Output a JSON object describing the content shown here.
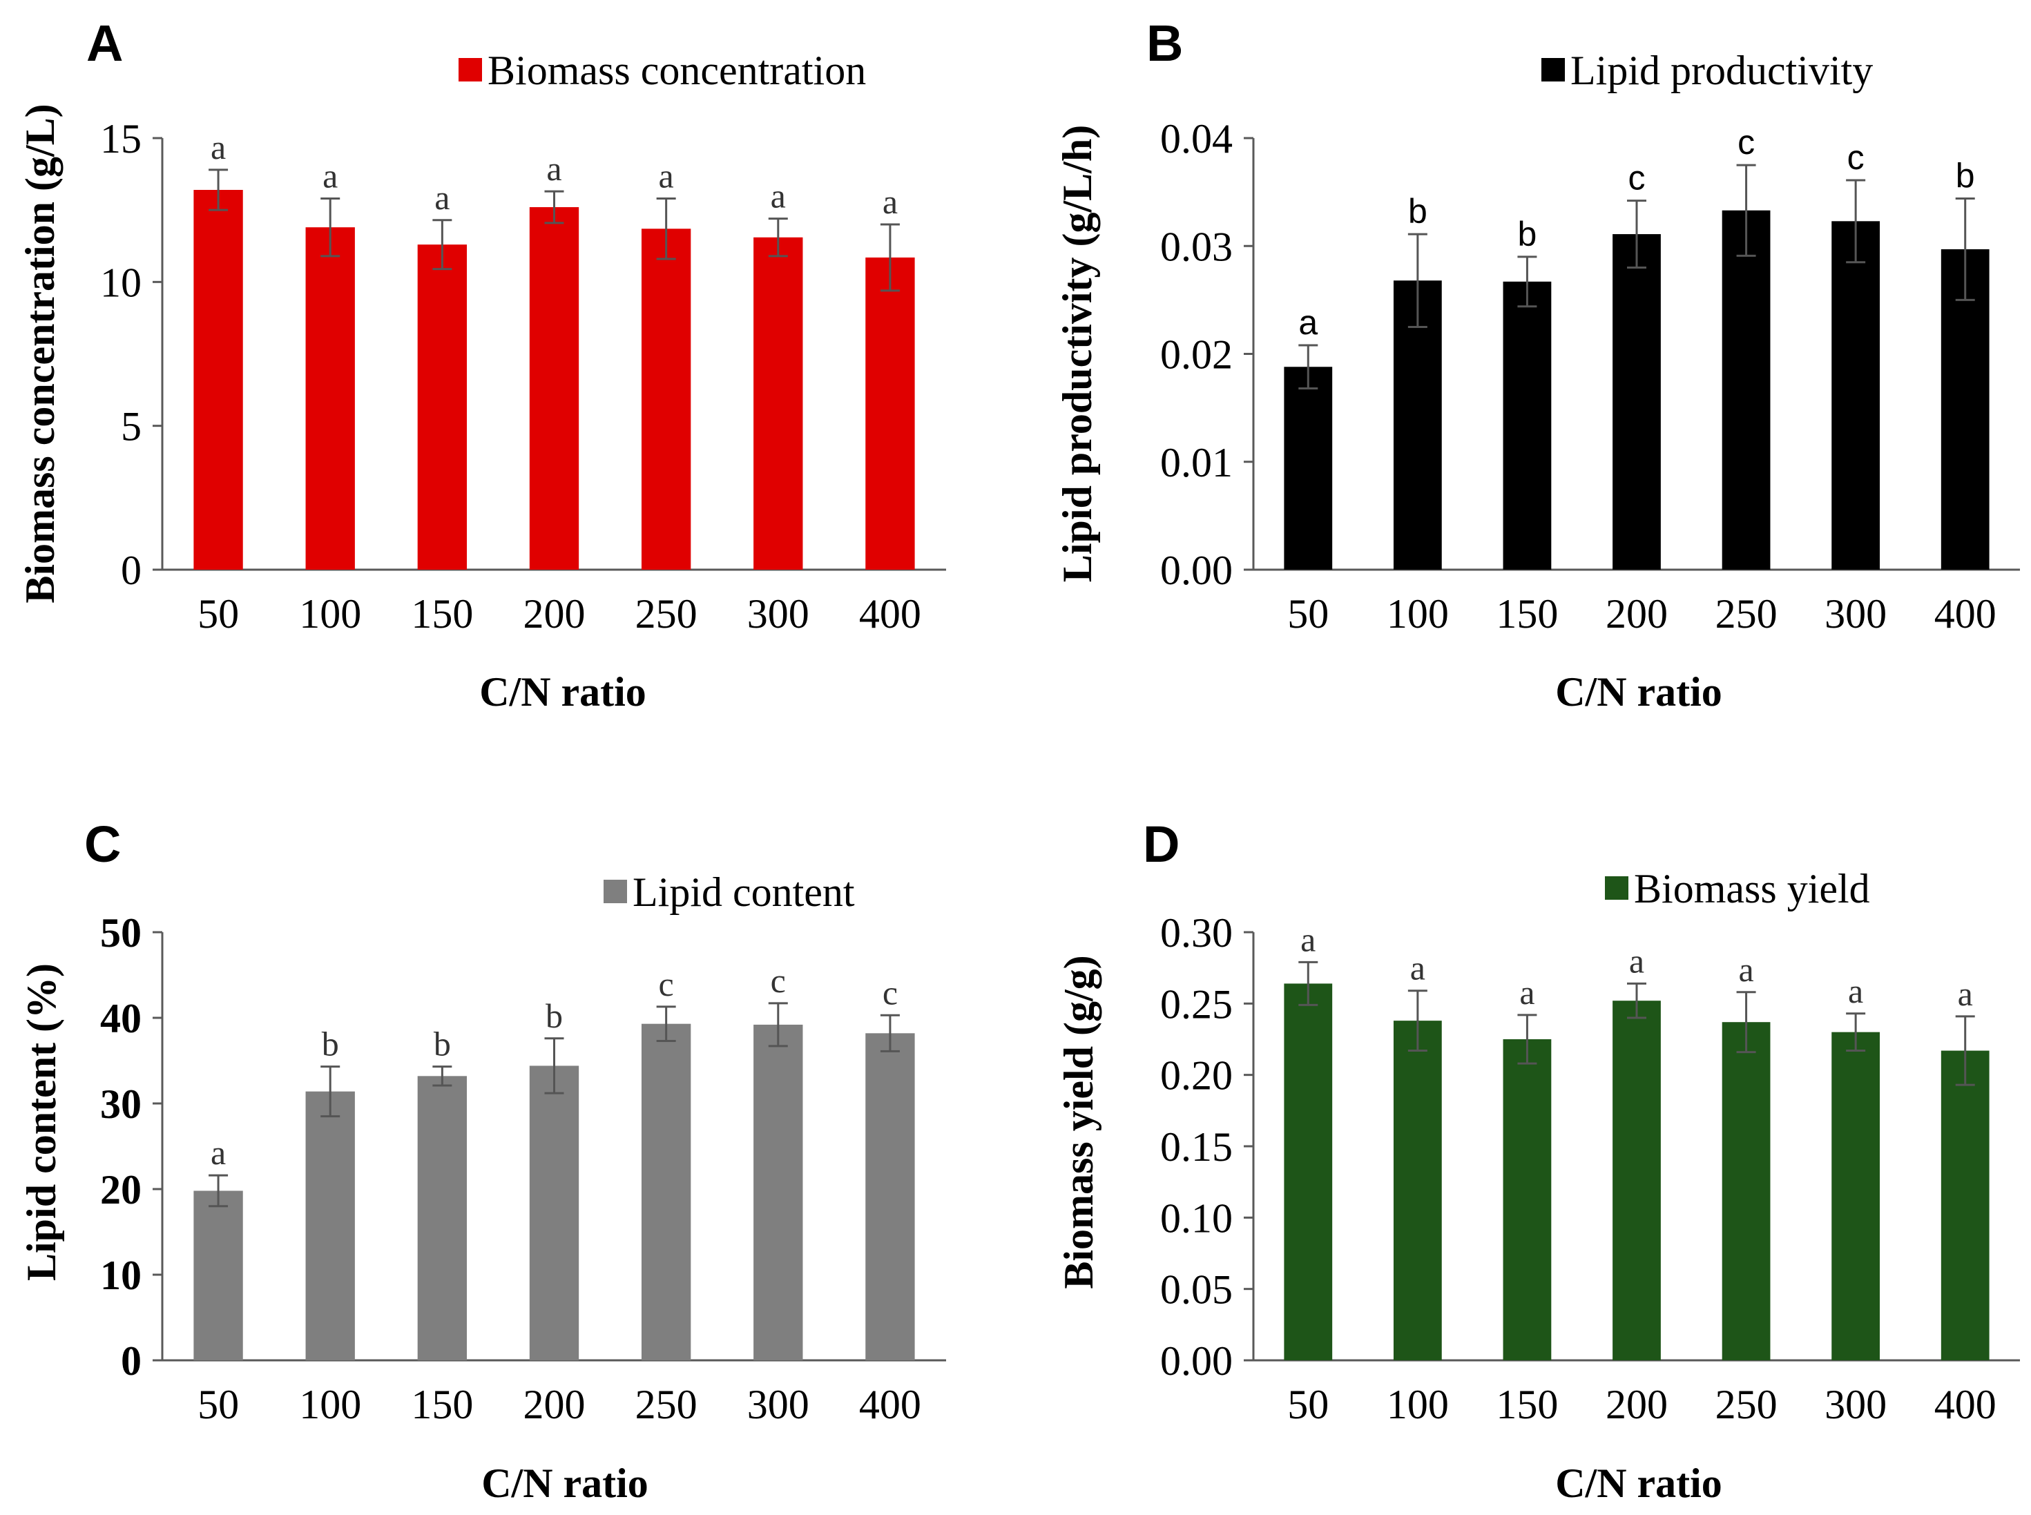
{
  "figure": {
    "x_categories": [
      "50",
      "100",
      "150",
      "200",
      "250",
      "300",
      "400"
    ]
  },
  "chart_data": [
    {
      "panel": "A",
      "type": "bar",
      "legend": "Biomass concentration",
      "xlabel": "C/N ratio",
      "ylabel": "Biomass concentration (g/L)",
      "categories": [
        "50",
        "100",
        "150",
        "200",
        "250",
        "300",
        "400"
      ],
      "values": [
        13.2,
        11.9,
        11.3,
        12.6,
        11.85,
        11.55,
        10.85
      ],
      "errors": [
        0.7,
        1.0,
        0.85,
        0.55,
        1.05,
        0.65,
        1.15
      ],
      "significance": [
        "a",
        "a",
        "a",
        "a",
        "a",
        "a",
        "a"
      ],
      "ylim": [
        0,
        15
      ],
      "yticks": [
        "0",
        "5",
        "10",
        "15"
      ],
      "color": "#e00000",
      "tick_bold": false,
      "sig_font": "serif"
    },
    {
      "panel": "B",
      "type": "bar",
      "legend": "Lipid productivity",
      "xlabel": "C/N ratio",
      "ylabel": "Lipid productivity (g/L/h)",
      "categories": [
        "50",
        "100",
        "150",
        "200",
        "250",
        "300",
        "400"
      ],
      "values": [
        0.0188,
        0.0268,
        0.0267,
        0.0311,
        0.0333,
        0.0323,
        0.0297
      ],
      "errors": [
        0.002,
        0.0043,
        0.0023,
        0.0031,
        0.0042,
        0.0038,
        0.0047
      ],
      "significance": [
        "a",
        "b",
        "b",
        "c",
        "c",
        "c",
        "b"
      ],
      "ylim": [
        0,
        0.04
      ],
      "yticks": [
        "0.00",
        "0.01",
        "0.02",
        "0.03",
        "0.04"
      ],
      "color": "#000000",
      "tick_bold": false,
      "sig_font": "sans"
    },
    {
      "panel": "C",
      "type": "bar",
      "legend": "Lipid content",
      "xlabel": "C/N ratio",
      "ylabel": "Lipid content (%)",
      "categories": [
        "50",
        "100",
        "150",
        "200",
        "250",
        "300",
        "400"
      ],
      "values": [
        19.8,
        31.4,
        33.2,
        34.4,
        39.3,
        39.2,
        38.2
      ],
      "errors": [
        1.8,
        2.9,
        1.1,
        3.2,
        2.0,
        2.5,
        2.1
      ],
      "significance": [
        "a",
        "b",
        "b",
        "b",
        "c",
        "c",
        "c"
      ],
      "ylim": [
        0,
        50
      ],
      "yticks": [
        "0",
        "10",
        "20",
        "30",
        "40",
        "50"
      ],
      "color": "#7f7f7f",
      "tick_bold": true,
      "sig_font": "serif"
    },
    {
      "panel": "D",
      "type": "bar",
      "legend": "Biomass yield",
      "xlabel": "C/N ratio",
      "ylabel": "Biomass yield (g/g)",
      "categories": [
        "50",
        "100",
        "150",
        "200",
        "250",
        "300",
        "400"
      ],
      "values": [
        0.264,
        0.238,
        0.225,
        0.252,
        0.237,
        0.23,
        0.217
      ],
      "errors": [
        0.015,
        0.021,
        0.017,
        0.012,
        0.021,
        0.013,
        0.024
      ],
      "significance": [
        "a",
        "a",
        "a",
        "a",
        "a",
        "a",
        "a"
      ],
      "ylim": [
        0,
        0.3
      ],
      "yticks": [
        "0.00",
        "0.05",
        "0.10",
        "0.15",
        "0.20",
        "0.25",
        "0.30"
      ],
      "color": "#1e5518",
      "tick_bold": false,
      "sig_font": "serif"
    }
  ]
}
